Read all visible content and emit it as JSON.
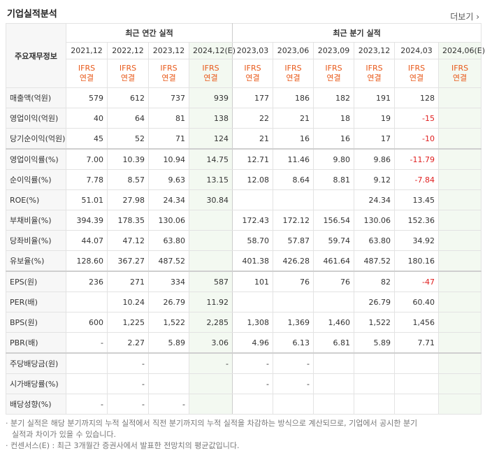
{
  "header": {
    "title": "기업실적분석",
    "more": "더보기"
  },
  "table": {
    "corner": "주요재무정보",
    "groups": [
      "최근 연간 실적",
      "최근 분기 실적"
    ],
    "periods": [
      "2021,12",
      "2022,12",
      "2023,12",
      "2024,12(E)",
      "2023,03",
      "2023,06",
      "2023,09",
      "2023,12",
      "2024,03",
      "2024,06(E)"
    ],
    "standard": [
      "IFRS",
      "연결"
    ],
    "rows": [
      [
        "매출액(억원)",
        "579",
        "612",
        "737",
        "939",
        "177",
        "186",
        "182",
        "191",
        "128",
        null
      ],
      [
        "영업이익(억원)",
        "40",
        "64",
        "81",
        "138",
        "22",
        "21",
        "18",
        "19",
        "-15",
        null
      ],
      [
        "당기순이익(억원)",
        "45",
        "52",
        "71",
        "124",
        "21",
        "16",
        "16",
        "17",
        "-10",
        null
      ],
      [
        "영업이익률(%)",
        "7.00",
        "10.39",
        "10.94",
        "14.75",
        "12.71",
        "11.46",
        "9.80",
        "9.86",
        "-11.79",
        null
      ],
      [
        "순이익률(%)",
        "7.78",
        "8.57",
        "9.63",
        "13.15",
        "12.08",
        "8.64",
        "8.81",
        "9.12",
        "-7.84",
        null
      ],
      [
        "ROE(%)",
        "51.01",
        "27.98",
        "24.34",
        "30.84",
        null,
        null,
        null,
        "24.34",
        "13.45",
        null
      ],
      [
        "부채비율(%)",
        "394.39",
        "178.35",
        "130.06",
        null,
        "172.43",
        "172.12",
        "156.54",
        "130.06",
        "152.36",
        null
      ],
      [
        "당좌비율(%)",
        "44.07",
        "47.12",
        "63.80",
        null,
        "58.70",
        "57.87",
        "59.74",
        "63.80",
        "34.92",
        null
      ],
      [
        "유보율(%)",
        "128.60",
        "367.27",
        "487.52",
        null,
        "401.38",
        "426.28",
        "461.64",
        "487.52",
        "180.16",
        null
      ],
      [
        "EPS(원)",
        "236",
        "271",
        "334",
        "587",
        "101",
        "76",
        "76",
        "82",
        "-47",
        null
      ],
      [
        "PER(배)",
        null,
        "10.24",
        "26.79",
        "11.92",
        null,
        null,
        null,
        "26.79",
        "60.40",
        null
      ],
      [
        "BPS(원)",
        "600",
        "1,225",
        "1,522",
        "2,285",
        "1,308",
        "1,369",
        "1,460",
        "1,522",
        "1,456",
        null
      ],
      [
        "PBR(배)",
        "-",
        "2.27",
        "5.89",
        "3.06",
        "4.96",
        "6.13",
        "6.81",
        "5.89",
        "7.71",
        null
      ],
      [
        "주당배당금(원)",
        null,
        "-",
        null,
        "-",
        "-",
        "-",
        null,
        null,
        null,
        null
      ],
      [
        "시가배당률(%)",
        null,
        "-",
        null,
        null,
        "-",
        "-",
        null,
        null,
        null,
        null
      ],
      [
        "배당성향(%)",
        "-",
        "-",
        "-",
        null,
        null,
        null,
        null,
        null,
        null,
        null
      ]
    ]
  },
  "notes": [
    "분기 실적은 해당 분기까지의 누적 실적에서 직전 분기까지의 누적 실적을 차감하는 방식으로 계산되므로, 기업에서 공시한 분기 실적과 차이가 있을 수 있습니다.",
    "컨센서스(E) : 최근 3개월간 증권사에서 발표한 전망치의 평균값입니다."
  ]
}
